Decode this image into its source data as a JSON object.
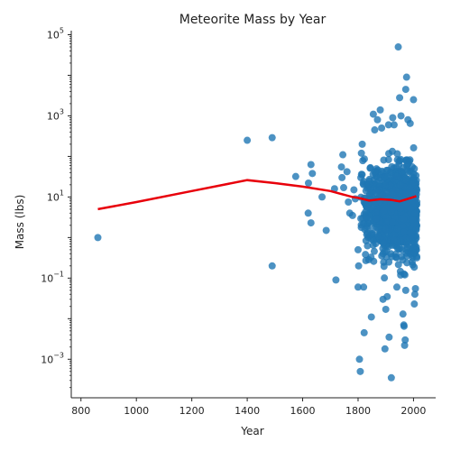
{
  "chart_data": {
    "type": "scatter",
    "title": "Meteorite Mass by Year",
    "xlabel": "Year",
    "ylabel": "Mass (lbs)",
    "xlim": [
      765,
      2080
    ],
    "ylim_exponent": [
      -3.95,
      5.1
    ],
    "y_scale": "log",
    "grid": false,
    "x_ticks": [
      {
        "value": 800,
        "label": "800"
      },
      {
        "value": 1000,
        "label": "1000"
      },
      {
        "value": 1200,
        "label": "1200"
      },
      {
        "value": 1400,
        "label": "1400"
      },
      {
        "value": 1600,
        "label": "1600"
      },
      {
        "value": 1800,
        "label": "1800"
      },
      {
        "value": 2000,
        "label": "2000"
      }
    ],
    "y_ticks": [
      {
        "value": 0.001,
        "base": "10",
        "exp": "−3"
      },
      {
        "value": 0.1,
        "base": "10",
        "exp": "−1"
      },
      {
        "value": 10,
        "base": "10",
        "exp": "1"
      },
      {
        "value": 1000,
        "base": "10",
        "exp": "3"
      },
      {
        "value": 100000,
        "base": "10",
        "exp": "5"
      }
    ],
    "points_color": "#1f77b4",
    "trend_color": "#e8000b",
    "points": [
      [
        861,
        1.0
      ],
      [
        1400,
        250
      ],
      [
        1490,
        0.2
      ],
      [
        1490,
        290
      ],
      [
        1575,
        32
      ],
      [
        1620,
        4.0
      ],
      [
        1621,
        22
      ],
      [
        1630,
        2.3
      ],
      [
        1630,
        63
      ],
      [
        1635,
        38
      ],
      [
        1670,
        10
      ],
      [
        1685,
        1.5
      ],
      [
        1715,
        16
      ],
      [
        1720,
        0.09
      ],
      [
        1740,
        55
      ],
      [
        1742,
        30
      ],
      [
        1745,
        110
      ],
      [
        1748,
        17
      ],
      [
        1760,
        42
      ],
      [
        1765,
        7.5
      ],
      [
        1770,
        4.0
      ],
      [
        1780,
        3.5
      ],
      [
        1785,
        15
      ],
      [
        1790,
        9.0
      ],
      [
        1800,
        0.5
      ],
      [
        1800,
        0.06
      ],
      [
        1802,
        0.2
      ],
      [
        1805,
        0.001
      ],
      [
        1808,
        0.0005
      ],
      [
        1810,
        30
      ],
      [
        1812,
        120
      ],
      [
        1815,
        200
      ],
      [
        1820,
        0.06
      ],
      [
        1822,
        0.0045
      ],
      [
        1828,
        0.27
      ],
      [
        1848,
        0.011
      ],
      [
        1855,
        1100
      ],
      [
        1860,
        450
      ],
      [
        1870,
        800
      ],
      [
        1880,
        1400
      ],
      [
        1885,
        500
      ],
      [
        1890,
        0.03
      ],
      [
        1897,
        0.0018
      ],
      [
        1900,
        0.017
      ],
      [
        1905,
        0.035
      ],
      [
        1910,
        600
      ],
      [
        1912,
        0.0035
      ],
      [
        1920,
        0.00035
      ],
      [
        1925,
        900
      ],
      [
        1930,
        600
      ],
      [
        1940,
        0.06
      ],
      [
        1945,
        50000
      ],
      [
        1950,
        2800
      ],
      [
        1955,
        1000
      ],
      [
        1962,
        0.013
      ],
      [
        1965,
        0.007
      ],
      [
        1966,
        0.0065
      ],
      [
        1968,
        0.0022
      ],
      [
        1970,
        0.003
      ],
      [
        1972,
        0.05
      ],
      [
        1975,
        9000
      ],
      [
        1972,
        4500
      ],
      [
        1980,
        800
      ],
      [
        1988,
        650
      ],
      [
        1995,
        0.25
      ],
      [
        2000,
        2500
      ],
      [
        2003,
        0.023
      ],
      [
        2005,
        0.04
      ],
      [
        2007,
        0.055
      ]
    ],
    "trend_line": [
      [
        861,
        5.0
      ],
      [
        1000,
        7.5
      ],
      [
        1200,
        14
      ],
      [
        1400,
        26
      ],
      [
        1500,
        22
      ],
      [
        1600,
        18
      ],
      [
        1700,
        14
      ],
      [
        1780,
        10
      ],
      [
        1800,
        9.5
      ],
      [
        1840,
        8.2
      ],
      [
        1880,
        8.8
      ],
      [
        1920,
        8.5
      ],
      [
        1950,
        7.8
      ],
      [
        1980,
        9.0
      ],
      [
        2010,
        10.5
      ]
    ]
  }
}
